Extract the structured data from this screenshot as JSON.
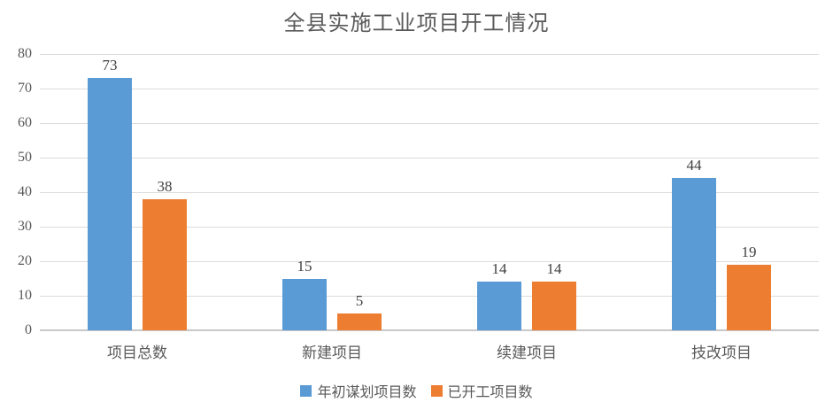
{
  "chart_data": {
    "type": "bar",
    "title": "全县实施工业项目开工情况",
    "categories": [
      "项目总数",
      "新建项目",
      "续建项目",
      "技改项目"
    ],
    "series": [
      {
        "name": "年初谋划项目数",
        "color": "#5B9BD5",
        "values": [
          73,
          15,
          14,
          44
        ]
      },
      {
        "name": "已开工项目数",
        "color": "#ED7D31",
        "values": [
          38,
          5,
          14,
          19
        ]
      }
    ],
    "xlabel": "",
    "ylabel": "",
    "ylim": [
      0,
      80
    ],
    "y_ticks": [
      0,
      10,
      20,
      30,
      40,
      50,
      60,
      70,
      80
    ],
    "grid": true,
    "data_labels": true,
    "legend_position": "bottom",
    "colors": {
      "gridline": "#dcdcdc",
      "axis_line": "#c8c8c8",
      "axis_text": "#595959",
      "data_label_text": "#404040",
      "title_text": "#595959"
    }
  }
}
